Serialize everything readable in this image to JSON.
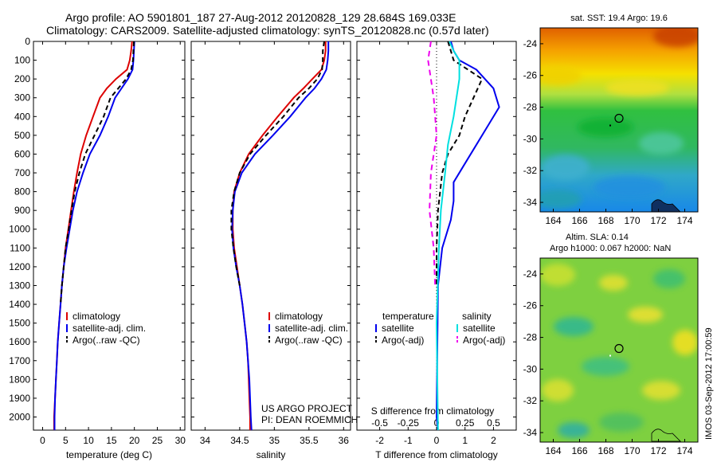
{
  "header": {
    "line1": "Argo profile: AO 5901801_187 27-Aug-2012 20120828_129 28.684S 169.033E",
    "line2": "Climatology: CARS2009. Satellite-adjusted climatology: synTS_20120828.nc (0.57d later)"
  },
  "colors": {
    "climatology": "#dd0000",
    "satellite": "#0000ee",
    "argo": "#000000",
    "salinity_sat": "#00e0e0",
    "salinity_argo": "#ee00ee"
  },
  "chart_data": [
    {
      "type": "line",
      "xlabel": "temperature (deg C)",
      "ylabel": "",
      "xlim": [
        -2,
        31
      ],
      "ylim": [
        2070,
        0
      ],
      "xticks": [
        0,
        5,
        10,
        15,
        20,
        25,
        30
      ],
      "yticks": [
        0,
        100,
        200,
        300,
        400,
        500,
        600,
        700,
        800,
        900,
        1000,
        1100,
        1200,
        1300,
        1400,
        1500,
        1600,
        1700,
        1800,
        1900,
        2000
      ],
      "legend": [
        "climatology",
        "satellite-adj. clim.",
        "Argo(..raw -QC)"
      ],
      "series": [
        {
          "key": "clim",
          "color": "#dd0000",
          "dash": "",
          "points": [
            [
              19.5,
              0
            ],
            [
              19.3,
              50
            ],
            [
              19.0,
              100
            ],
            [
              18.4,
              150
            ],
            [
              16.0,
              200
            ],
            [
              14.0,
              250
            ],
            [
              12.5,
              300
            ],
            [
              11.0,
              400
            ],
            [
              9.5,
              500
            ],
            [
              8.3,
              600
            ],
            [
              7.5,
              700
            ],
            [
              6.8,
              800
            ],
            [
              6.2,
              900
            ],
            [
              5.6,
              1000
            ],
            [
              5.0,
              1100
            ],
            [
              4.6,
              1200
            ],
            [
              4.2,
              1300
            ],
            [
              3.9,
              1400
            ],
            [
              3.6,
              1500
            ],
            [
              3.3,
              1600
            ],
            [
              3.1,
              1700
            ],
            [
              2.9,
              1800
            ],
            [
              2.7,
              1900
            ],
            [
              2.5,
              2000
            ],
            [
              2.5,
              2070
            ]
          ]
        },
        {
          "key": "sat",
          "color": "#0000ee",
          "dash": "",
          "points": [
            [
              20.0,
              0
            ],
            [
              19.9,
              50
            ],
            [
              19.8,
              100
            ],
            [
              19.6,
              150
            ],
            [
              18.6,
              200
            ],
            [
              17.2,
              250
            ],
            [
              15.8,
              300
            ],
            [
              14.3,
              400
            ],
            [
              12.5,
              500
            ],
            [
              10.3,
              600
            ],
            [
              8.8,
              700
            ],
            [
              7.5,
              800
            ],
            [
              6.6,
              900
            ],
            [
              5.9,
              1000
            ],
            [
              5.2,
              1100
            ],
            [
              4.6,
              1200
            ],
            [
              4.2,
              1300
            ],
            [
              3.9,
              1400
            ],
            [
              3.6,
              1500
            ],
            [
              3.3,
              1600
            ],
            [
              3.1,
              1700
            ],
            [
              2.9,
              1800
            ],
            [
              2.7,
              1900
            ],
            [
              2.6,
              2000
            ],
            [
              2.6,
              2070
            ]
          ]
        },
        {
          "key": "argo",
          "color": "#000000",
          "dash": "6,4",
          "points": [
            [
              19.9,
              0
            ],
            [
              19.8,
              50
            ],
            [
              19.7,
              100
            ],
            [
              19.3,
              150
            ],
            [
              18.2,
              200
            ],
            [
              16.5,
              250
            ],
            [
              14.8,
              300
            ],
            [
              13.3,
              400
            ],
            [
              11.3,
              500
            ],
            [
              9.3,
              600
            ],
            [
              8.0,
              700
            ],
            [
              7.0,
              800
            ],
            [
              6.3,
              900
            ],
            [
              5.7,
              1000
            ],
            [
              5.0,
              1100
            ],
            [
              4.6,
              1200
            ],
            [
              4.2,
              1300
            ],
            [
              3.9,
              1400
            ]
          ]
        }
      ]
    },
    {
      "type": "line",
      "xlabel": "salinity",
      "xlim": [
        33.8,
        36.1
      ],
      "ylim": [
        2070,
        0
      ],
      "xticks": [
        34,
        34.5,
        35,
        35.5,
        36
      ],
      "legend": [
        "climatology",
        "satellite-adj. clim.",
        "Argo(..raw -QC)"
      ],
      "annotation": [
        "US ARGO PROJECT",
        "PI: DEAN ROEMMICH"
      ],
      "series": [
        {
          "key": "clim",
          "color": "#dd0000",
          "dash": "",
          "points": [
            [
              35.74,
              0
            ],
            [
              35.74,
              50
            ],
            [
              35.72,
              100
            ],
            [
              35.68,
              150
            ],
            [
              35.55,
              200
            ],
            [
              35.42,
              250
            ],
            [
              35.28,
              300
            ],
            [
              35.05,
              400
            ],
            [
              34.83,
              500
            ],
            [
              34.63,
              600
            ],
            [
              34.5,
              700
            ],
            [
              34.42,
              800
            ],
            [
              34.4,
              900
            ],
            [
              34.4,
              1000
            ],
            [
              34.42,
              1100
            ],
            [
              34.46,
              1200
            ],
            [
              34.5,
              1300
            ],
            [
              34.54,
              1400
            ],
            [
              34.57,
              1500
            ],
            [
              34.6,
              1600
            ],
            [
              34.62,
              1700
            ],
            [
              34.63,
              1800
            ],
            [
              34.64,
              1900
            ],
            [
              34.65,
              2000
            ],
            [
              34.65,
              2070
            ]
          ]
        },
        {
          "key": "sat",
          "color": "#0000ee",
          "dash": "",
          "points": [
            [
              35.78,
              0
            ],
            [
              35.78,
              50
            ],
            [
              35.77,
              100
            ],
            [
              35.75,
              150
            ],
            [
              35.68,
              200
            ],
            [
              35.58,
              250
            ],
            [
              35.45,
              300
            ],
            [
              35.23,
              400
            ],
            [
              34.98,
              500
            ],
            [
              34.72,
              600
            ],
            [
              34.53,
              700
            ],
            [
              34.43,
              800
            ],
            [
              34.4,
              900
            ],
            [
              34.39,
              1000
            ],
            [
              34.41,
              1100
            ],
            [
              34.45,
              1200
            ],
            [
              34.5,
              1300
            ],
            [
              34.54,
              1400
            ],
            [
              34.57,
              1500
            ],
            [
              34.6,
              1600
            ],
            [
              34.62,
              1700
            ],
            [
              34.64,
              1800
            ],
            [
              34.65,
              1900
            ],
            [
              34.66,
              2000
            ],
            [
              34.67,
              2070
            ]
          ]
        },
        {
          "key": "argo",
          "color": "#000000",
          "dash": "6,4",
          "points": [
            [
              35.72,
              0
            ],
            [
              35.7,
              50
            ],
            [
              35.7,
              100
            ],
            [
              35.69,
              150
            ],
            [
              35.62,
              200
            ],
            [
              35.5,
              250
            ],
            [
              35.35,
              300
            ],
            [
              35.13,
              400
            ],
            [
              34.88,
              500
            ],
            [
              34.65,
              600
            ],
            [
              34.5,
              700
            ],
            [
              34.42,
              800
            ],
            [
              34.38,
              900
            ],
            [
              34.38,
              1000
            ],
            [
              34.41,
              1100
            ],
            [
              34.45,
              1200
            ],
            [
              34.5,
              1300
            ]
          ]
        }
      ]
    },
    {
      "type": "line",
      "xlabel": "T difference from climatology",
      "xlabel_top": "S difference from climatology",
      "xlim": [
        -2.8,
        2.8
      ],
      "ylim": [
        2070,
        0
      ],
      "xticks": [
        -2,
        -1,
        0,
        1,
        2
      ],
      "top_ticks_labels": [
        "-0.5",
        "-0.25",
        "0",
        "0.25",
        "0.5"
      ],
      "legend_headers": [
        "temperature",
        "salinity"
      ],
      "legend": [
        "satellite",
        "Argo(-adj)",
        "satellite",
        "Argo(-adj)"
      ],
      "series": [
        {
          "key": "t_sat",
          "color": "#0000ee",
          "dash": "",
          "points": [
            [
              0.5,
              0
            ],
            [
              0.6,
              50
            ],
            [
              0.8,
              100
            ],
            [
              1.4,
              150
            ],
            [
              2.0,
              250
            ],
            [
              2.2,
              350
            ],
            [
              1.8,
              450
            ],
            [
              1.4,
              550
            ],
            [
              1.0,
              650
            ],
            [
              0.6,
              750
            ],
            [
              0.6,
              850
            ],
            [
              0.5,
              950
            ],
            [
              0.2,
              1100
            ],
            [
              0.05,
              1300
            ],
            [
              0.0,
              2000
            ],
            [
              0.05,
              2070
            ]
          ]
        },
        {
          "key": "t_argo",
          "color": "#000000",
          "dash": "6,4",
          "points": [
            [
              0.4,
              0
            ],
            [
              0.6,
              100
            ],
            [
              1.6,
              200
            ],
            [
              1.3,
              300
            ],
            [
              1.0,
              400
            ],
            [
              0.8,
              500
            ],
            [
              0.4,
              600
            ],
            [
              0.2,
              700
            ],
            [
              0.05,
              900
            ],
            [
              0.0,
              1100
            ],
            [
              0.0,
              1300
            ]
          ]
        },
        {
          "key": "s_sat",
          "color": "#00e0e0",
          "dash": "",
          "points": [
            [
              0.45,
              0
            ],
            [
              0.6,
              50
            ],
            [
              0.8,
              100
            ],
            [
              0.8,
              200
            ],
            [
              0.7,
              300
            ],
            [
              0.6,
              400
            ],
            [
              0.4,
              550
            ],
            [
              0.3,
              700
            ],
            [
              0.15,
              900
            ],
            [
              0.08,
              1100
            ],
            [
              0.0,
              1500
            ],
            [
              0.05,
              2070
            ]
          ]
        },
        {
          "key": "s_argo",
          "color": "#ee00ee",
          "dash": "7,5",
          "points": [
            [
              -0.2,
              0
            ],
            [
              -0.3,
              100
            ],
            [
              -0.1,
              300
            ],
            [
              0.0,
              500
            ],
            [
              -0.2,
              700
            ],
            [
              -0.25,
              900
            ],
            [
              -0.1,
              1100
            ],
            [
              -0.05,
              1300
            ]
          ]
        }
      ]
    },
    {
      "type": "heatmap",
      "title": "sat. SST: 19.4  Argo: 19.6",
      "xlim": [
        163,
        175
      ],
      "ylim": [
        -34.6,
        -23
      ],
      "xticks": [
        164,
        166,
        168,
        170,
        172,
        174
      ],
      "yticks": [
        -24,
        -26,
        -28,
        -30,
        -32,
        -34
      ],
      "marker": [
        169.0,
        -28.7
      ]
    },
    {
      "type": "heatmap",
      "title": "Altim. SLA: 0.14",
      "subtitle": "Argo h1000: 0.067 h2000: NaN",
      "xlim": [
        163,
        175
      ],
      "ylim": [
        -34.6,
        -23
      ],
      "xticks": [
        164,
        166,
        168,
        170,
        172,
        174
      ],
      "yticks": [
        -24,
        -26,
        -28,
        -30,
        -32,
        -34
      ],
      "marker": [
        169.0,
        -28.7
      ]
    }
  ],
  "credit": "IMOS 03-Sep-2012 17:00:59"
}
